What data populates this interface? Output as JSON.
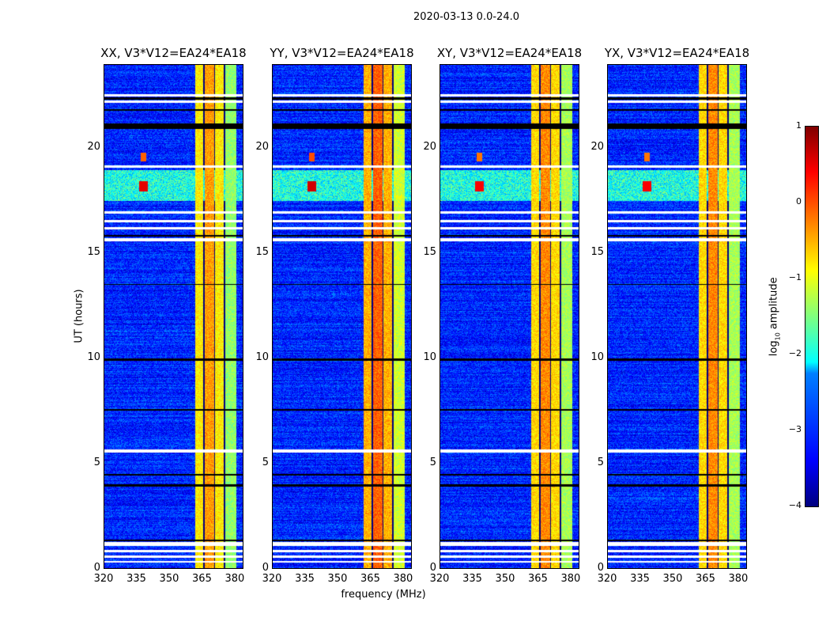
{
  "chart_data": {
    "type": "heatmap",
    "title": "2020-03-13 0.0-24.0",
    "xlabel": "frequency (MHz)",
    "ylabel": "UT (hours)",
    "xlim": [
      320,
      384
    ],
    "ylim": [
      0,
      24
    ],
    "xticks": [
      "320",
      "335",
      "350",
      "365",
      "380"
    ],
    "yticks": [
      "0",
      "5",
      "10",
      "15",
      "20"
    ],
    "panels": [
      {
        "title": "XX, V3*V12=EA24*EA18",
        "band_level": -0.8,
        "rfi_level": 0.5
      },
      {
        "title": "YY, V3*V12=EA24*EA18",
        "band_level": -0.5,
        "rfi_level": 0.6
      },
      {
        "title": "XY, V3*V12=EA24*EA18",
        "band_level": -0.7,
        "rfi_level": 0.4
      },
      {
        "title": "YX, V3*V12=EA24*EA18",
        "band_level": -0.7,
        "rfi_level": 0.4
      }
    ],
    "background_level": -3.2,
    "bright_band_mhz": [
      362,
      381
    ],
    "rfi_burst_hours": [
      17.5,
      19.0
    ],
    "flagged_white_hours": [
      [
        0.25,
        0.35
      ],
      [
        0.5,
        0.6
      ],
      [
        0.75,
        0.85
      ],
      [
        1.05,
        1.25
      ],
      [
        5.5,
        5.65
      ],
      [
        15.6,
        15.75
      ],
      [
        16.15,
        16.25
      ],
      [
        16.5,
        16.6
      ],
      [
        16.9,
        17.0
      ],
      [
        19.1,
        19.2
      ],
      [
        22.2,
        22.3
      ],
      [
        22.5,
        22.6
      ]
    ],
    "flagged_black_hours": [
      [
        1.3,
        1.35
      ],
      [
        3.9,
        4.0
      ],
      [
        4.4,
        4.5
      ],
      [
        7.5,
        7.6
      ],
      [
        9.9,
        10.0
      ],
      [
        13.5,
        13.55
      ],
      [
        15.8,
        15.9
      ],
      [
        20.95,
        21.2
      ],
      [
        21.8,
        21.9
      ],
      [
        22.35,
        22.45
      ]
    ],
    "colorbar": {
      "label_main": "log",
      "label_sub": "10",
      "label_rest": " amplitude",
      "ticks": [
        "1",
        "0",
        "−1",
        "−2",
        "−3",
        "−4"
      ],
      "range": [
        -4,
        1
      ],
      "colormap": "jet"
    }
  }
}
